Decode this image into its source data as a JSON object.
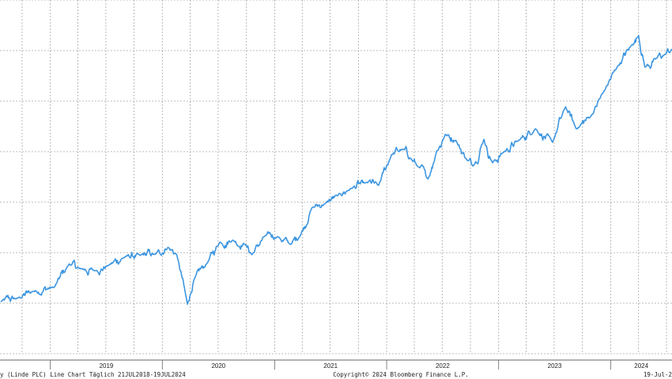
{
  "footer": {
    "left": "y (Linde PLC) Line Chart  Täglich 21JUL2018-19JUL2024",
    "center": "Copyright© 2024 Bloomberg Finance L.P.",
    "right": "19-Jul-2"
  },
  "colors": {
    "line": "#3d96e0",
    "grid": "#a8a8a8",
    "axis": "#666666"
  },
  "chart_data": {
    "type": "line",
    "x_tick_labels": [
      "2019",
      "2020",
      "2021",
      "2022",
      "2023",
      "2024"
    ],
    "xlim": [
      "2018-07-21",
      "2024-07-19"
    ],
    "ylim": [
      0.0,
      1.0
    ],
    "grid": true,
    "series": [
      {
        "x": [
          "2018-07-23",
          "2018-09-17",
          "2018-11-05",
          "2019-01-14",
          "2019-03-04",
          "2019-04-08",
          "2019-05-27",
          "2019-07-08",
          "2019-09-02",
          "2019-10-21",
          "2019-12-09",
          "2020-01-20",
          "2020-02-17",
          "2020-03-23",
          "2020-04-13",
          "2020-05-25",
          "2020-07-06",
          "2020-08-17",
          "2020-09-28",
          "2020-10-19",
          "2020-11-30",
          "2021-01-11",
          "2021-02-22",
          "2021-03-22",
          "2021-05-03",
          "2021-06-14",
          "2021-07-26",
          "2021-09-06",
          "2021-10-25",
          "2021-12-06",
          "2022-01-17",
          "2022-02-21",
          "2022-03-21",
          "2022-04-11",
          "2022-05-16",
          "2022-06-13",
          "2022-07-11",
          "2022-08-15",
          "2022-09-19",
          "2022-10-10",
          "2022-11-14",
          "2022-12-12",
          "2023-01-16",
          "2023-03-06",
          "2023-05-01",
          "2023-06-26",
          "2023-08-07",
          "2023-09-11",
          "2023-10-30",
          "2023-12-11",
          "2024-01-22",
          "2024-03-11",
          "2024-04-01",
          "2024-04-22",
          "2024-05-27",
          "2024-06-24",
          "2024-07-19"
        ],
        "y": [
          0.148,
          0.157,
          0.176,
          0.188,
          0.254,
          0.24,
          0.235,
          0.249,
          0.274,
          0.278,
          0.281,
          0.301,
          0.28,
          0.14,
          0.209,
          0.255,
          0.315,
          0.321,
          0.309,
          0.28,
          0.333,
          0.331,
          0.309,
          0.329,
          0.413,
          0.424,
          0.447,
          0.467,
          0.483,
          0.476,
          0.563,
          0.578,
          0.552,
          0.531,
          0.494,
          0.573,
          0.62,
          0.603,
          0.549,
          0.531,
          0.606,
          0.54,
          0.569,
          0.602,
          0.636,
          0.598,
          0.698,
          0.636,
          0.673,
          0.743,
          0.81,
          0.874,
          0.9,
          0.81,
          0.833,
          0.845,
          0.86
        ]
      }
    ]
  }
}
